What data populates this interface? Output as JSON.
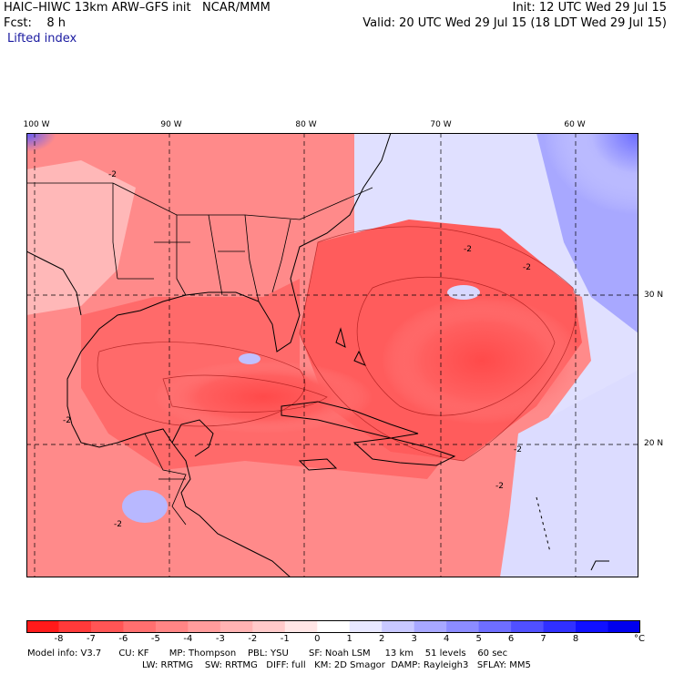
{
  "header": {
    "line1_left": "HAIC–HIWC 13km ARW–GFS init   NCAR/MMM",
    "line1_right": "Init: 12 UTC Wed 29 Jul 15",
    "line2_left": "Fcst:    8 h",
    "line2_right": "Valid: 20 UTC Wed 29 Jul 15 (18 LDT Wed 29 Jul 15)",
    "field": "Lifted index"
  },
  "map": {
    "lon_labels": [
      "100 W",
      "90 W",
      "80 W",
      "70 W",
      "60 W"
    ],
    "lat_labels": [
      "30 N",
      "20 N"
    ],
    "contour_label": "-2"
  },
  "colorbar": {
    "labels": [
      "-8",
      "-7",
      "-6",
      "-5",
      "-4",
      "-3",
      "-2",
      "-1",
      "0",
      "1",
      "2",
      "3",
      "4",
      "5",
      "6",
      "7",
      "8"
    ],
    "unit": "°C",
    "colors": [
      "#ff1a1a",
      "#ff3a3a",
      "#ff5555",
      "#ff6f6f",
      "#ff8585",
      "#ff9c9c",
      "#ffb3b3",
      "#ffcaca",
      "#ffe6e6",
      "#ffffff",
      "#e8e8ff",
      "#c8c8ff",
      "#a8a8ff",
      "#8c8cff",
      "#6e6eff",
      "#5050ff",
      "#3030ff",
      "#1010ff",
      "#0000ee"
    ]
  },
  "footer": {
    "line1": "Model info: V3.7      CU: KF       MP: Thompson    PBL: YSU       SF: Noah LSM     13 km    51 levels    60 sec",
    "line2": "LW: RRTMG    SW: RRTMG   DIFF: full   KM: 2D Smagor  DAMP: Rayleigh3   SFLAY: MM5"
  }
}
